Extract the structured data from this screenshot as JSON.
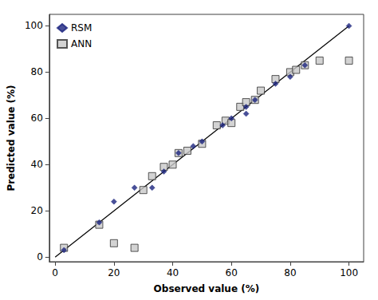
{
  "chart_data": {
    "type": "scatter",
    "xlabel": "Observed value (%)",
    "ylabel": "Predicted value (%)",
    "xlim": [
      -2,
      105
    ],
    "ylim": [
      -2,
      105
    ],
    "xticks": [
      0,
      20,
      40,
      60,
      80,
      100
    ],
    "yticks": [
      0,
      20,
      40,
      60,
      80,
      100
    ],
    "grid": false,
    "legend": "upper left",
    "series": [
      {
        "name": "RSM",
        "type": "scatter",
        "marker": "diamond",
        "color": "#1a237e",
        "x": [
          3,
          15,
          20,
          27,
          33,
          37,
          42,
          47,
          50,
          57,
          60,
          65,
          65,
          68,
          75,
          80,
          85,
          100
        ],
        "values": [
          3,
          15,
          24,
          30,
          30,
          37,
          45,
          48,
          50,
          57,
          60,
          62,
          65,
          68,
          75,
          78,
          83,
          100
        ]
      },
      {
        "name": "ANN",
        "type": "scatter",
        "marker": "square",
        "color": "#c8c8c8",
        "x": [
          3,
          15,
          20,
          27,
          30,
          33,
          37,
          40,
          42,
          45,
          50,
          55,
          58,
          60,
          63,
          65,
          68,
          70,
          75,
          80,
          82,
          85,
          90,
          100
        ],
        "values": [
          4,
          14,
          6,
          4,
          29,
          35,
          39,
          40,
          45,
          46,
          49,
          57,
          59,
          58,
          65,
          67,
          68,
          72,
          77,
          80,
          81,
          83,
          85,
          85
        ]
      },
      {
        "type": "line",
        "color": "#000000",
        "x": [
          0,
          100
        ],
        "values": [
          0,
          100
        ]
      }
    ]
  }
}
